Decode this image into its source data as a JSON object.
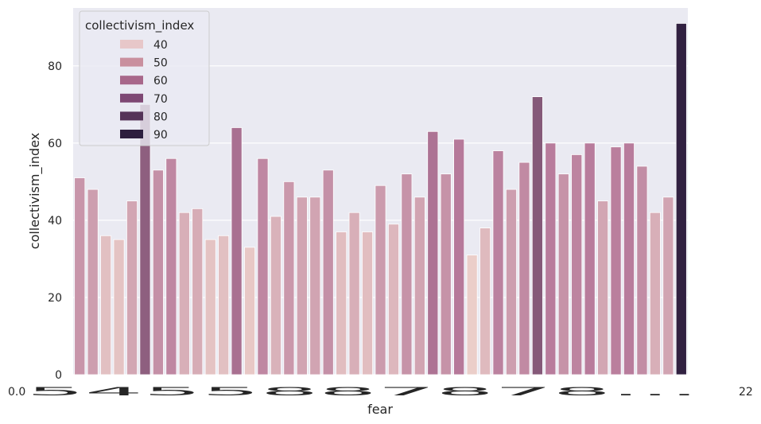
{
  "chart_data": {
    "type": "bar",
    "xlabel": "fear",
    "ylabel": "collectivism_index",
    "ylim": [
      0,
      95
    ],
    "y_ticks": [
      "0",
      "20",
      "40",
      "60",
      "80"
    ],
    "x_tick_start": "0.0",
    "x_tick_end": "22",
    "x_tick_overlap": "5455887878...",
    "grid": true,
    "legend": {
      "title": "collectivism_index",
      "placement": "top-left",
      "entries": [
        {
          "label": "40",
          "color": "#e7c7c9"
        },
        {
          "label": "50",
          "color": "#c98f9e"
        },
        {
          "label": "60",
          "color": "#a8678a"
        },
        {
          "label": "70",
          "color": "#7e4874"
        },
        {
          "label": "80",
          "color": "#553358"
        },
        {
          "label": "90",
          "color": "#2d1e3e"
        }
      ]
    },
    "values": [
      51,
      48,
      36,
      35,
      45,
      70,
      53,
      56,
      42,
      43,
      35,
      36,
      64,
      33,
      56,
      41,
      50,
      46,
      46,
      53,
      37,
      42,
      37,
      49,
      39,
      52,
      46,
      63,
      52,
      61,
      31,
      38,
      58,
      48,
      55,
      72,
      60,
      52,
      57,
      60,
      45,
      59,
      60,
      54,
      42,
      46,
      91
    ],
    "colors": {
      "plot_background": "#eaeaf2",
      "grid": "#ffffff",
      "low": "#edd1cb",
      "mid": "#b6799a",
      "high": "#2d1e3e"
    }
  }
}
